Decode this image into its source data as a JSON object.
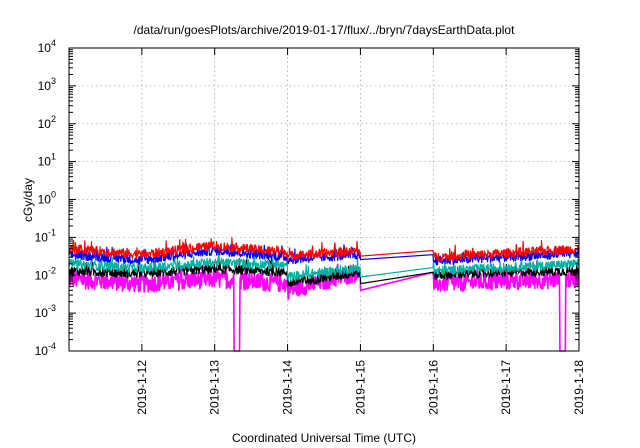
{
  "chart_data": {
    "type": "line",
    "title": "/data/run/goesPlots/archive/2019-01-17/flux/../bryn/7daysEarthData.plot",
    "xlabel": "Coordinated Universal Time (UTC)",
    "ylabel": "cGy/day",
    "yscale": "log",
    "ylim": [
      0.0001,
      10000
    ],
    "y_ticks": [
      {
        "value": 0.0001,
        "base": "10",
        "exp": "-4"
      },
      {
        "value": 0.001,
        "base": "10",
        "exp": "-3"
      },
      {
        "value": 0.01,
        "base": "10",
        "exp": "-2"
      },
      {
        "value": 0.1,
        "base": "10",
        "exp": "-1"
      },
      {
        "value": 1,
        "base": "10",
        "exp": "0"
      },
      {
        "value": 10,
        "base": "10",
        "exp": "1"
      },
      {
        "value": 100,
        "base": "10",
        "exp": "2"
      },
      {
        "value": 1000,
        "base": "10",
        "exp": "3"
      },
      {
        "value": 10000,
        "base": "10",
        "exp": "4"
      }
    ],
    "x_range": [
      "2019-01-11T00:00",
      "2019-01-18T00:00"
    ],
    "x_ticks": [
      "2019-1-12",
      "2019-1-13",
      "2019-1-14",
      "2019-1-15",
      "2019-1-16",
      "2019-1-17",
      "2019-1-18"
    ],
    "grid": true,
    "legend": "none",
    "data_gap": [
      "2019-01-15T00:00",
      "2019-01-16T00:00"
    ],
    "dropouts": [
      {
        "time": "2019-01-13T07:20",
        "series": [
          "magenta"
        ]
      },
      {
        "time": "2019-01-17T18:40",
        "series": [
          "magenta"
        ]
      }
    ],
    "series": [
      {
        "color": "#ff0000",
        "typical": 0.05,
        "peak": 0.1,
        "values": [
          [
            0.05,
            0.035
          ],
          [
            0.035,
            0.06
          ],
          [
            0.06,
            0.04
          ],
          [
            0.032,
            0.045
          ],
          [
            0.045,
            0.07
          ],
          [
            0.03,
            0.038
          ],
          [
            0.038,
            0.05
          ]
        ]
      },
      {
        "color": "#0000ff",
        "typical": 0.035,
        "peak": 0.06,
        "values": [
          [
            0.035,
            0.025
          ],
          [
            0.025,
            0.045
          ],
          [
            0.045,
            0.03
          ],
          [
            0.026,
            0.035
          ],
          [
            0.035,
            0.05
          ],
          [
            0.024,
            0.03
          ],
          [
            0.03,
            0.038
          ]
        ]
      },
      {
        "color": "#00b0a0",
        "typical": 0.018,
        "peak": 0.03,
        "values": [
          [
            0.02,
            0.015
          ],
          [
            0.015,
            0.022
          ],
          [
            0.022,
            0.018
          ],
          [
            0.009,
            0.016
          ],
          [
            0.016,
            0.022
          ],
          [
            0.013,
            0.016
          ],
          [
            0.016,
            0.02
          ]
        ]
      },
      {
        "color": "#000000",
        "typical": 0.012,
        "peak": 0.02,
        "values": [
          [
            0.013,
            0.011
          ],
          [
            0.011,
            0.015
          ],
          [
            0.015,
            0.012
          ],
          [
            0.006,
            0.012
          ],
          [
            0.012,
            0.015
          ],
          [
            0.01,
            0.012
          ],
          [
            0.012,
            0.013
          ]
        ]
      },
      {
        "color": "#ff00ff",
        "typical": 0.006,
        "peak": 0.015,
        "values": [
          [
            0.008,
            0.006
          ],
          [
            0.006,
            0.008
          ],
          [
            0.008,
            0.006
          ],
          [
            0.004,
            0.012
          ],
          [
            0.012,
            0.009
          ],
          [
            0.006,
            0.007
          ],
          [
            0.007,
            0.008
          ]
        ]
      }
    ]
  }
}
